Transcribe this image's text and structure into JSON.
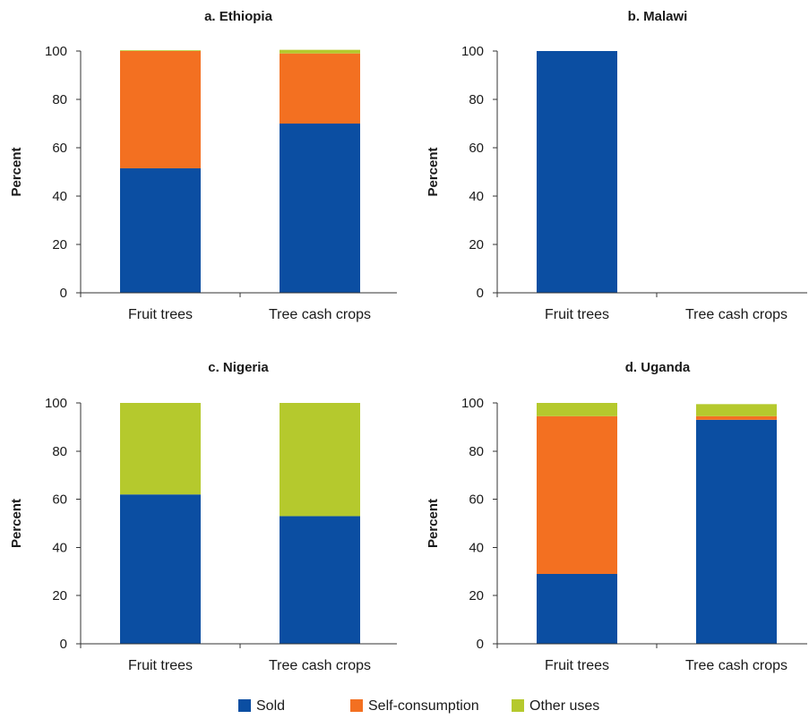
{
  "legend": [
    "Sold",
    "Self-consumption",
    "Other uses"
  ],
  "chart_data": [
    {
      "type": "bar",
      "stacked": true,
      "title": "a. Ethiopia",
      "ylabel": "Percent",
      "ylim": [
        0,
        100
      ],
      "yticks": [
        0,
        20,
        40,
        60,
        80,
        100
      ],
      "categories": [
        "Fruit trees",
        "Tree cash crops"
      ],
      "series": [
        {
          "name": "Sold",
          "color": "#0b4ea2",
          "values": [
            51.5,
            70
          ]
        },
        {
          "name": "Self-consumption",
          "color": "#f37021",
          "values": [
            48.5,
            29
          ]
        },
        {
          "name": "Other uses",
          "color": "#b5c92d",
          "values": [
            0.3,
            1.5
          ]
        }
      ]
    },
    {
      "type": "bar",
      "stacked": true,
      "title": "b. Malawi",
      "ylabel": "Percent",
      "ylim": [
        0,
        100
      ],
      "yticks": [
        0,
        20,
        40,
        60,
        80,
        100
      ],
      "categories": [
        "Fruit trees",
        "Tree cash crops"
      ],
      "series": [
        {
          "name": "Sold",
          "color": "#0b4ea2",
          "values": [
            100,
            0
          ]
        },
        {
          "name": "Self-consumption",
          "color": "#f37021",
          "values": [
            0,
            0
          ]
        },
        {
          "name": "Other uses",
          "color": "#b5c92d",
          "values": [
            0,
            0
          ]
        }
      ]
    },
    {
      "type": "bar",
      "stacked": true,
      "title": "c. Nigeria",
      "ylabel": "Percent",
      "ylim": [
        0,
        100
      ],
      "yticks": [
        0,
        20,
        40,
        60,
        80,
        100
      ],
      "categories": [
        "Fruit trees",
        "Tree cash crops"
      ],
      "series": [
        {
          "name": "Sold",
          "color": "#0b4ea2",
          "values": [
            62,
            53
          ]
        },
        {
          "name": "Self-consumption",
          "color": "#f37021",
          "values": [
            0,
            0
          ]
        },
        {
          "name": "Other uses",
          "color": "#b5c92d",
          "values": [
            38,
            47
          ]
        }
      ]
    },
    {
      "type": "bar",
      "stacked": true,
      "title": "d. Uganda",
      "ylabel": "Percent",
      "ylim": [
        0,
        100
      ],
      "yticks": [
        0,
        20,
        40,
        60,
        80,
        100
      ],
      "categories": [
        "Fruit trees",
        "Tree cash crops"
      ],
      "series": [
        {
          "name": "Sold",
          "color": "#0b4ea2",
          "values": [
            29,
            93
          ]
        },
        {
          "name": "Self-consumption",
          "color": "#f37021",
          "values": [
            65.5,
            1.5
          ]
        },
        {
          "name": "Other uses",
          "color": "#b5c92d",
          "values": [
            5.5,
            5
          ]
        }
      ]
    }
  ]
}
